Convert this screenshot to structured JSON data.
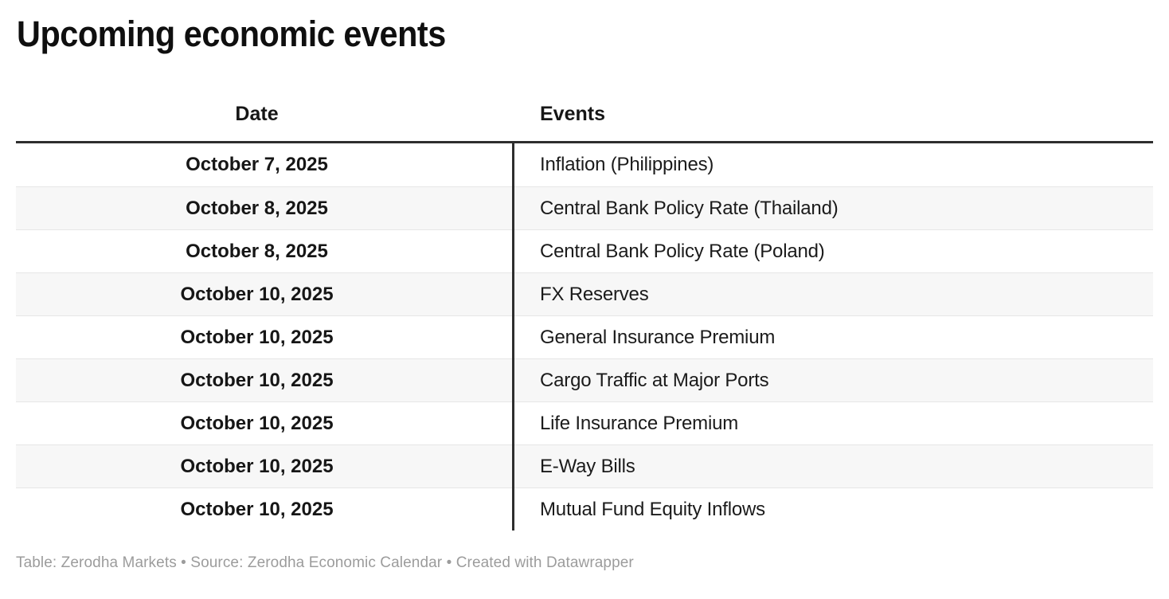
{
  "title": "Upcoming economic events",
  "table": {
    "header": {
      "date": "Date",
      "events": "Events"
    },
    "rows": [
      {
        "date": "October 7, 2025",
        "event": "Inflation (Philippines)"
      },
      {
        "date": "October 8, 2025",
        "event": "Central Bank Policy Rate (Thailand)"
      },
      {
        "date": "October 8, 2025",
        "event": "Central Bank Policy Rate (Poland)"
      },
      {
        "date": "October 10, 2025",
        "event": "FX Reserves"
      },
      {
        "date": "October 10, 2025",
        "event": "General Insurance Premium"
      },
      {
        "date": "October 10, 2025",
        "event": "Cargo Traffic at Major Ports"
      },
      {
        "date": "October 10, 2025",
        "event": "Life Insurance Premium"
      },
      {
        "date": "October 10, 2025",
        "event": "E-Way Bills"
      },
      {
        "date": "October 10, 2025",
        "event": "Mutual Fund Equity Inflows"
      }
    ]
  },
  "footer": "Table: Zerodha Markets • Source: Zerodha Economic Calendar • Created with Datawrapper",
  "colors": {
    "header_border": "#2e2e2e",
    "column_divider": "#2e2e2e",
    "stripe": "#f7f7f7",
    "row_separator": "#e6e6e6",
    "footer_text": "#9c9c9c"
  },
  "chart_data": {
    "type": "table",
    "title": "Upcoming economic events",
    "columns": [
      "Date",
      "Events"
    ],
    "rows": [
      [
        "October 7, 2025",
        "Inflation (Philippines)"
      ],
      [
        "October 8, 2025",
        "Central Bank Policy Rate (Thailand)"
      ],
      [
        "October 8, 2025",
        "Central Bank Policy Rate (Poland)"
      ],
      [
        "October 10, 2025",
        "FX Reserves"
      ],
      [
        "October 10, 2025",
        "General Insurance Premium"
      ],
      [
        "October 10, 2025",
        "Cargo Traffic at Major Ports"
      ],
      [
        "October 10, 2025",
        "Life Insurance Premium"
      ],
      [
        "October 10, 2025",
        "E-Way Bills"
      ],
      [
        "October 10, 2025",
        "Mutual Fund Equity Inflows"
      ]
    ],
    "layout": {
      "date_column_align": "center",
      "events_column_align": "left",
      "zebra_striping": true
    }
  }
}
